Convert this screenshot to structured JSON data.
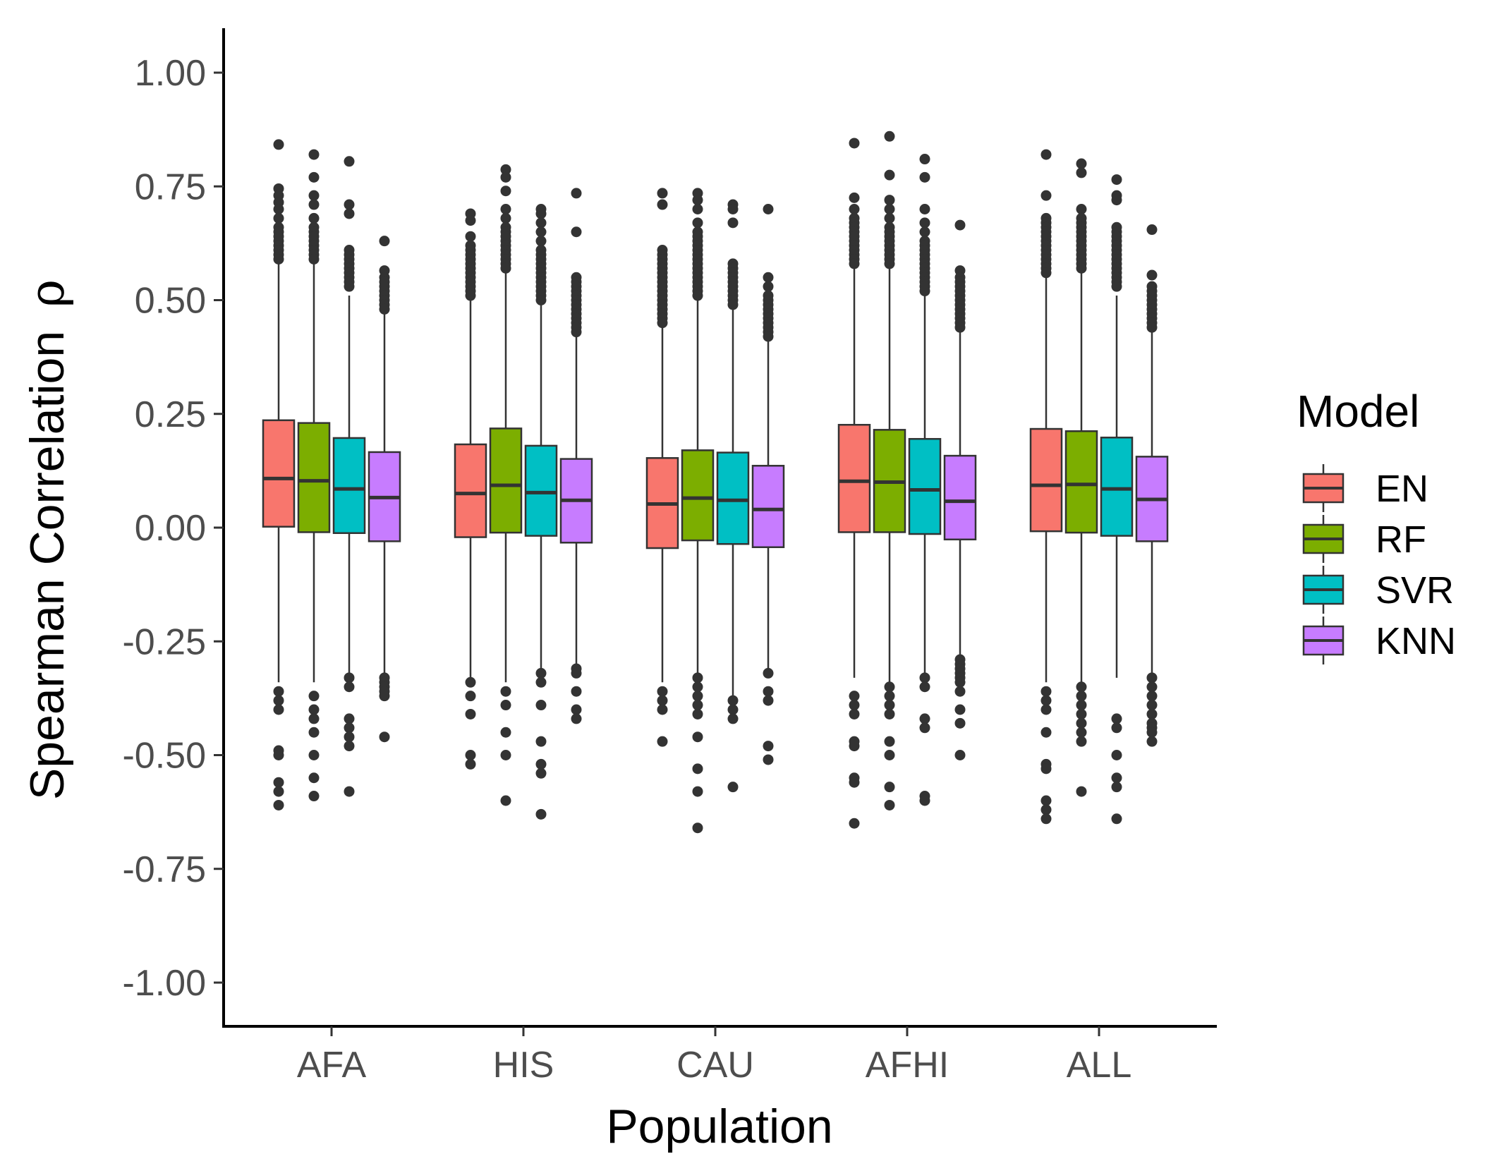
{
  "chart_data": {
    "type": "box",
    "title": "",
    "xlabel": "Population",
    "ylabel": "Spearman Correlation",
    "ylabel_symbol": "ρ",
    "ylim": [
      -1.1,
      1.1
    ],
    "yticks": [
      "1.00",
      "0.75",
      "0.50",
      "0.25",
      "0.00",
      "-0.25",
      "-0.50",
      "-0.75",
      "-1.00"
    ],
    "ytick_values": [
      1.0,
      0.75,
      0.5,
      0.25,
      0.0,
      -0.25,
      -0.5,
      -0.75,
      -1.0
    ],
    "categories": [
      "AFA",
      "HIS",
      "CAU",
      "AFHI",
      "ALL"
    ],
    "grid": false,
    "legend": {
      "title": "Model",
      "position": "right"
    },
    "series": [
      {
        "name": "EN",
        "color": "#F8766D",
        "boxes": [
          {
            "q1": 0.002,
            "median": 0.108,
            "q3": 0.236,
            "whisker_low": -0.34,
            "whisker_high": 0.58,
            "outliers": [
              0.842,
              0.745,
              0.73,
              0.715,
              0.7,
              0.68,
              0.66,
              0.65,
              0.64,
              0.63,
              0.62,
              0.61,
              0.6,
              0.59,
              -0.36,
              -0.38,
              -0.4,
              -0.49,
              -0.5,
              -0.56,
              -0.58,
              -0.61
            ]
          },
          {
            "q1": -0.021,
            "median": 0.075,
            "q3": 0.183,
            "whisker_low": -0.33,
            "whisker_high": 0.5,
            "outliers": [
              0.69,
              0.675,
              0.64,
              0.62,
              0.61,
              0.6,
              0.59,
              0.58,
              0.57,
              0.56,
              0.55,
              0.54,
              0.53,
              0.52,
              0.51,
              -0.34,
              -0.37,
              -0.41,
              -0.5,
              -0.52
            ]
          },
          {
            "q1": -0.045,
            "median": 0.052,
            "q3": 0.153,
            "whisker_low": -0.34,
            "whisker_high": 0.44,
            "outliers": [
              0.735,
              0.71,
              0.61,
              0.6,
              0.59,
              0.58,
              0.57,
              0.56,
              0.55,
              0.54,
              0.53,
              0.52,
              0.51,
              0.5,
              0.49,
              0.48,
              0.47,
              0.46,
              0.45,
              -0.36,
              -0.38,
              -0.4,
              -0.47
            ]
          },
          {
            "q1": -0.01,
            "median": 0.102,
            "q3": 0.226,
            "whisker_low": -0.33,
            "whisker_high": 0.57,
            "outliers": [
              0.845,
              0.725,
              0.7,
              0.68,
              0.67,
              0.66,
              0.65,
              0.64,
              0.63,
              0.62,
              0.61,
              0.6,
              0.59,
              0.58,
              -0.37,
              -0.39,
              -0.41,
              -0.47,
              -0.48,
              -0.55,
              -0.56,
              -0.65
            ]
          },
          {
            "q1": -0.008,
            "median": 0.093,
            "q3": 0.217,
            "whisker_low": -0.34,
            "whisker_high": 0.55,
            "outliers": [
              0.82,
              0.73,
              0.68,
              0.67,
              0.66,
              0.65,
              0.64,
              0.63,
              0.62,
              0.61,
              0.6,
              0.59,
              0.58,
              0.57,
              0.56,
              -0.36,
              -0.38,
              -0.4,
              -0.45,
              -0.52,
              -0.53,
              -0.6,
              -0.62,
              -0.64
            ]
          }
        ]
      },
      {
        "name": "RF",
        "color": "#7CAE00",
        "boxes": [
          {
            "q1": -0.01,
            "median": 0.103,
            "q3": 0.23,
            "whisker_low": -0.34,
            "whisker_high": 0.58,
            "outliers": [
              0.82,
              0.77,
              0.73,
              0.71,
              0.68,
              0.66,
              0.65,
              0.64,
              0.63,
              0.62,
              0.61,
              0.6,
              0.59,
              -0.37,
              -0.4,
              -0.42,
              -0.45,
              -0.5,
              -0.55,
              -0.59
            ]
          },
          {
            "q1": -0.011,
            "median": 0.093,
            "q3": 0.218,
            "whisker_low": -0.34,
            "whisker_high": 0.56,
            "outliers": [
              0.787,
              0.77,
              0.74,
              0.7,
              0.68,
              0.66,
              0.65,
              0.64,
              0.63,
              0.62,
              0.61,
              0.6,
              0.59,
              0.58,
              0.57,
              -0.36,
              -0.39,
              -0.45,
              -0.5,
              -0.6
            ]
          },
          {
            "q1": -0.028,
            "median": 0.065,
            "q3": 0.17,
            "whisker_low": -0.32,
            "whisker_high": 0.5,
            "outliers": [
              0.735,
              0.72,
              0.7,
              0.67,
              0.65,
              0.64,
              0.63,
              0.62,
              0.61,
              0.6,
              0.59,
              0.58,
              0.57,
              0.56,
              0.55,
              0.54,
              0.53,
              0.52,
              0.51,
              -0.33,
              -0.35,
              -0.37,
              -0.39,
              -0.41,
              -0.46,
              -0.53,
              -0.58,
              -0.66
            ]
          },
          {
            "q1": -0.01,
            "median": 0.1,
            "q3": 0.215,
            "whisker_low": -0.34,
            "whisker_high": 0.57,
            "outliers": [
              0.86,
              0.775,
              0.72,
              0.7,
              0.68,
              0.66,
              0.65,
              0.64,
              0.63,
              0.62,
              0.61,
              0.6,
              0.59,
              0.58,
              -0.35,
              -0.37,
              -0.39,
              -0.41,
              -0.47,
              -0.5,
              -0.57,
              -0.61
            ]
          },
          {
            "q1": -0.011,
            "median": 0.095,
            "q3": 0.212,
            "whisker_low": -0.34,
            "whisker_high": 0.56,
            "outliers": [
              0.8,
              0.78,
              0.7,
              0.68,
              0.67,
              0.66,
              0.65,
              0.64,
              0.63,
              0.62,
              0.61,
              0.6,
              0.59,
              0.58,
              0.57,
              -0.35,
              -0.37,
              -0.39,
              -0.41,
              -0.43,
              -0.45,
              -0.47,
              -0.58
            ]
          }
        ]
      },
      {
        "name": "SVR",
        "color": "#00BFC4",
        "boxes": [
          {
            "q1": -0.012,
            "median": 0.085,
            "q3": 0.197,
            "whisker_low": -0.32,
            "whisker_high": 0.51,
            "outliers": [
              0.805,
              0.71,
              0.69,
              0.61,
              0.6,
              0.59,
              0.58,
              0.57,
              0.56,
              0.55,
              0.54,
              0.53,
              -0.33,
              -0.35,
              -0.42,
              -0.44,
              -0.46,
              -0.48,
              -0.58
            ]
          },
          {
            "q1": -0.018,
            "median": 0.077,
            "q3": 0.18,
            "whisker_low": -0.31,
            "whisker_high": 0.49,
            "outliers": [
              0.7,
              0.69,
              0.67,
              0.65,
              0.63,
              0.61,
              0.6,
              0.59,
              0.58,
              0.57,
              0.56,
              0.55,
              0.54,
              0.53,
              0.52,
              0.51,
              0.5,
              -0.32,
              -0.34,
              -0.39,
              -0.47,
              -0.52,
              -0.54,
              -0.63
            ]
          },
          {
            "q1": -0.036,
            "median": 0.06,
            "q3": 0.165,
            "whisker_low": -0.37,
            "whisker_high": 0.48,
            "outliers": [
              0.71,
              0.7,
              0.67,
              0.58,
              0.57,
              0.56,
              0.55,
              0.54,
              0.53,
              0.52,
              0.51,
              0.5,
              0.49,
              -0.38,
              -0.4,
              -0.42,
              -0.57
            ]
          },
          {
            "q1": -0.014,
            "median": 0.083,
            "q3": 0.195,
            "whisker_low": -0.32,
            "whisker_high": 0.51,
            "outliers": [
              0.81,
              0.77,
              0.7,
              0.67,
              0.65,
              0.63,
              0.62,
              0.61,
              0.6,
              0.59,
              0.58,
              0.57,
              0.56,
              0.55,
              0.54,
              0.53,
              0.52,
              -0.33,
              -0.35,
              -0.42,
              -0.44,
              -0.59,
              -0.6
            ]
          },
          {
            "q1": -0.018,
            "median": 0.085,
            "q3": 0.198,
            "whisker_low": -0.33,
            "whisker_high": 0.51,
            "outliers": [
              0.765,
              0.73,
              0.72,
              0.66,
              0.65,
              0.64,
              0.63,
              0.62,
              0.61,
              0.6,
              0.59,
              0.58,
              0.57,
              0.56,
              0.55,
              0.54,
              0.53,
              -0.42,
              -0.44,
              -0.5,
              -0.55,
              -0.57,
              -0.64
            ]
          }
        ]
      },
      {
        "name": "KNN",
        "color": "#C77CFF",
        "boxes": [
          {
            "q1": -0.03,
            "median": 0.066,
            "q3": 0.166,
            "whisker_low": -0.32,
            "whisker_high": 0.47,
            "outliers": [
              0.63,
              0.565,
              0.55,
              0.54,
              0.53,
              0.52,
              0.51,
              0.5,
              0.49,
              0.48,
              -0.33,
              -0.34,
              -0.35,
              -0.36,
              -0.37,
              -0.46
            ]
          },
          {
            "q1": -0.033,
            "median": 0.06,
            "q3": 0.151,
            "whisker_low": -0.3,
            "whisker_high": 0.42,
            "outliers": [
              0.735,
              0.65,
              0.55,
              0.54,
              0.53,
              0.52,
              0.51,
              0.5,
              0.49,
              0.48,
              0.47,
              0.46,
              0.45,
              0.44,
              0.43,
              -0.31,
              -0.32,
              -0.36,
              -0.4,
              -0.42
            ]
          },
          {
            "q1": -0.043,
            "median": 0.04,
            "q3": 0.136,
            "whisker_low": -0.31,
            "whisker_high": 0.41,
            "outliers": [
              0.7,
              0.55,
              0.53,
              0.51,
              0.5,
              0.49,
              0.48,
              0.47,
              0.46,
              0.45,
              0.44,
              0.43,
              0.42,
              -0.32,
              -0.36,
              -0.38,
              -0.48,
              -0.51
            ]
          },
          {
            "q1": -0.026,
            "median": 0.058,
            "q3": 0.158,
            "whisker_low": -0.28,
            "whisker_high": 0.43,
            "outliers": [
              0.665,
              0.565,
              0.55,
              0.54,
              0.53,
              0.52,
              0.51,
              0.5,
              0.49,
              0.48,
              0.47,
              0.46,
              0.45,
              0.44,
              -0.29,
              -0.3,
              -0.31,
              -0.32,
              -0.33,
              -0.34,
              -0.36,
              -0.4,
              -0.43,
              -0.5
            ]
          },
          {
            "q1": -0.03,
            "median": 0.062,
            "q3": 0.156,
            "whisker_low": -0.32,
            "whisker_high": 0.43,
            "outliers": [
              0.655,
              0.555,
              0.53,
              0.52,
              0.51,
              0.5,
              0.49,
              0.48,
              0.47,
              0.46,
              0.45,
              0.44,
              -0.33,
              -0.35,
              -0.37,
              -0.39,
              -0.41,
              -0.43,
              -0.44,
              -0.45,
              -0.47
            ]
          }
        ]
      }
    ]
  }
}
